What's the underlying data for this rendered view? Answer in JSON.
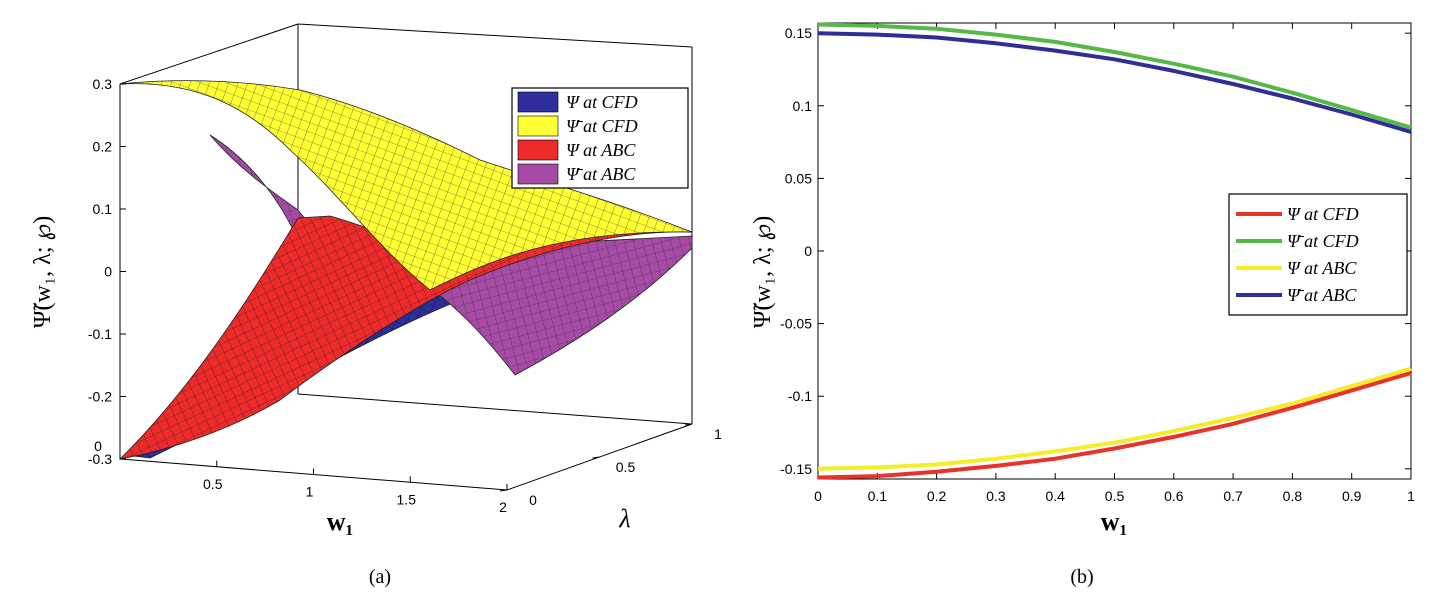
{
  "chart_data": [
    {
      "panel": "(a)",
      "type": "surface",
      "xlabel": "w₁",
      "ylabel": "Ψ̃(w₁, λ; ℘)",
      "zlabel": "λ",
      "x_ticks": [
        "0",
        "0.5",
        "1",
        "1.5",
        "2"
      ],
      "y_ticks": [
        "0.3",
        "0.2",
        "0.1",
        "0",
        "-0.1",
        "-0.2",
        "-0.3"
      ],
      "depth_ticks": [
        "0",
        "0.5",
        "1"
      ],
      "xlim": [
        0,
        2
      ],
      "ylim": [
        -0.3,
        0.3
      ],
      "depth_lim": [
        0,
        1
      ],
      "legend_position": "top-right",
      "series": [
        {
          "name": "Ψ at CFD",
          "color": "#2e2e9e"
        },
        {
          "name": "Ψ̄ at CFD",
          "color": "#ffff33"
        },
        {
          "name": "Ψ at ABC",
          "color": "#ee2a2a"
        },
        {
          "name": "Ψ̄ at ABC",
          "color": "#a64aa6"
        }
      ]
    },
    {
      "panel": "(b)",
      "type": "line",
      "xlabel": "w₁",
      "ylabel": "Ψ̃(w₁, λ; ℘)",
      "x_ticks": [
        "0",
        "0.1",
        "0.2",
        "0.3",
        "0.4",
        "0.5",
        "0.6",
        "0.7",
        "0.8",
        "0.9",
        "1"
      ],
      "y_ticks": [
        "0.15",
        "0.1",
        "0.05",
        "0",
        "-0.05",
        "-0.1",
        "-0.15"
      ],
      "xlim": [
        0,
        1
      ],
      "ylim": [
        -0.157,
        0.157
      ],
      "legend_position": "right",
      "x": [
        0,
        0.1,
        0.2,
        0.3,
        0.4,
        0.5,
        0.6,
        0.7,
        0.8,
        0.9,
        1.0
      ],
      "series": [
        {
          "name": "Ψ at CFD",
          "color": "#e8322a",
          "values": [
            -0.156,
            -0.155,
            -0.152,
            -0.148,
            -0.143,
            -0.136,
            -0.128,
            -0.119,
            -0.108,
            -0.096,
            -0.084
          ]
        },
        {
          "name": "Ψ̄ at CFD",
          "color": "#55b947",
          "values": [
            0.156,
            0.155,
            0.153,
            0.149,
            0.144,
            0.137,
            0.129,
            0.12,
            0.109,
            0.097,
            0.085
          ]
        },
        {
          "name": "Ψ at ABC",
          "color": "#f5ec2a",
          "values": [
            -0.15,
            -0.149,
            -0.147,
            -0.143,
            -0.138,
            -0.132,
            -0.124,
            -0.115,
            -0.105,
            -0.093,
            -0.081
          ]
        },
        {
          "name": "Ψ̄ at ABC",
          "color": "#2e2e96",
          "values": [
            0.15,
            0.149,
            0.147,
            0.143,
            0.138,
            0.132,
            0.124,
            0.115,
            0.105,
            0.094,
            0.082
          ]
        }
      ]
    }
  ],
  "captions": {
    "a": "(a)",
    "b": "(b)"
  }
}
